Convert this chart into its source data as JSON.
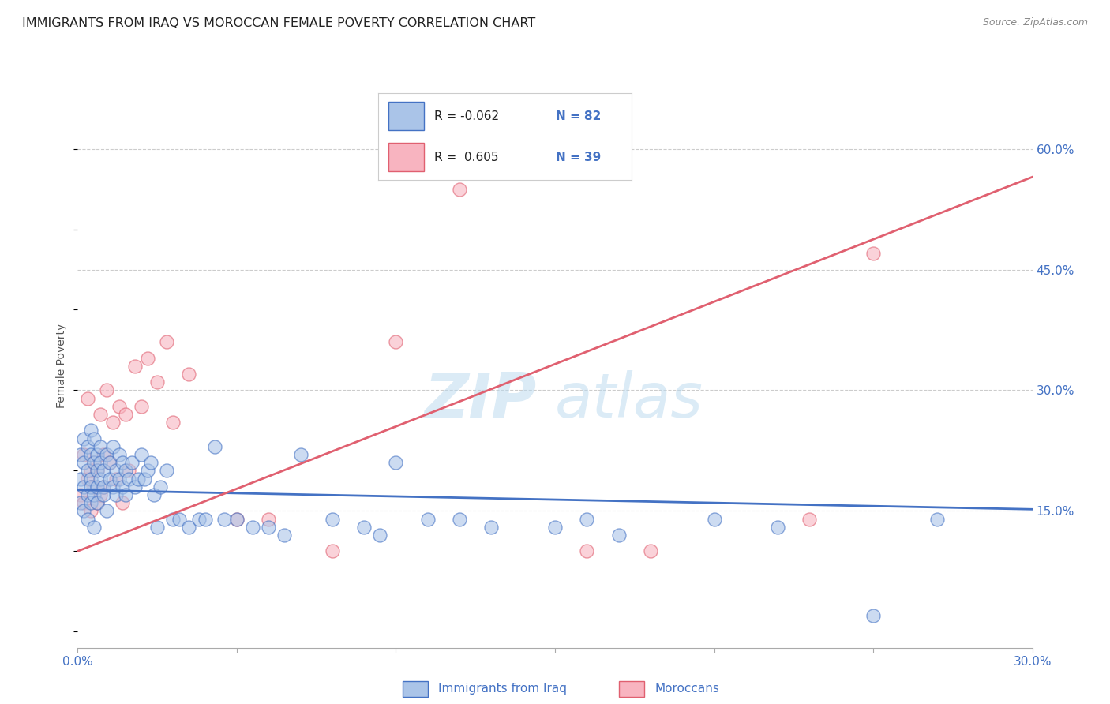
{
  "title": "IMMIGRANTS FROM IRAQ VS MOROCCAN FEMALE POVERTY CORRELATION CHART",
  "source": "Source: ZipAtlas.com",
  "xlabel_blue": "Immigrants from Iraq",
  "xlabel_pink": "Moroccans",
  "ylabel": "Female Poverty",
  "xlim": [
    0.0,
    0.3
  ],
  "ylim": [
    -0.02,
    0.68
  ],
  "right_yticks": [
    0.15,
    0.3,
    0.45,
    0.6
  ],
  "right_ytick_labels": [
    "15.0%",
    "30.0%",
    "45.0%",
    "60.0%"
  ],
  "xtick_vals": [
    0.0,
    0.05,
    0.1,
    0.15,
    0.2,
    0.25,
    0.3
  ],
  "blue_color": "#aac4e8",
  "pink_color": "#f8b4c0",
  "blue_line_color": "#4472C4",
  "pink_line_color": "#e06070",
  "blue_r": -0.062,
  "pink_r": 0.605,
  "blue_intercept": 0.176,
  "blue_slope": -0.08,
  "pink_intercept": 0.1,
  "pink_slope": 1.55,
  "blue_points_x": [
    0.001,
    0.001,
    0.001,
    0.002,
    0.002,
    0.002,
    0.002,
    0.003,
    0.003,
    0.003,
    0.003,
    0.004,
    0.004,
    0.004,
    0.004,
    0.004,
    0.005,
    0.005,
    0.005,
    0.005,
    0.006,
    0.006,
    0.006,
    0.006,
    0.007,
    0.007,
    0.007,
    0.008,
    0.008,
    0.008,
    0.009,
    0.009,
    0.01,
    0.01,
    0.011,
    0.011,
    0.012,
    0.012,
    0.013,
    0.013,
    0.014,
    0.014,
    0.015,
    0.015,
    0.016,
    0.017,
    0.018,
    0.019,
    0.02,
    0.021,
    0.022,
    0.023,
    0.024,
    0.025,
    0.026,
    0.028,
    0.03,
    0.032,
    0.035,
    0.038,
    0.04,
    0.043,
    0.046,
    0.05,
    0.055,
    0.06,
    0.065,
    0.07,
    0.08,
    0.09,
    0.095,
    0.1,
    0.11,
    0.12,
    0.13,
    0.15,
    0.16,
    0.17,
    0.2,
    0.22,
    0.25,
    0.27
  ],
  "blue_points_y": [
    0.19,
    0.16,
    0.22,
    0.18,
    0.21,
    0.15,
    0.24,
    0.2,
    0.17,
    0.23,
    0.14,
    0.19,
    0.22,
    0.16,
    0.25,
    0.18,
    0.21,
    0.17,
    0.24,
    0.13,
    0.2,
    0.18,
    0.22,
    0.16,
    0.23,
    0.19,
    0.21,
    0.18,
    0.2,
    0.17,
    0.22,
    0.15,
    0.19,
    0.21,
    0.18,
    0.23,
    0.2,
    0.17,
    0.22,
    0.19,
    0.18,
    0.21,
    0.17,
    0.2,
    0.19,
    0.21,
    0.18,
    0.19,
    0.22,
    0.19,
    0.2,
    0.21,
    0.17,
    0.13,
    0.18,
    0.2,
    0.14,
    0.14,
    0.13,
    0.14,
    0.14,
    0.23,
    0.14,
    0.14,
    0.13,
    0.13,
    0.12,
    0.22,
    0.14,
    0.13,
    0.12,
    0.21,
    0.14,
    0.14,
    0.13,
    0.13,
    0.14,
    0.12,
    0.14,
    0.13,
    0.02,
    0.14
  ],
  "pink_points_x": [
    0.001,
    0.002,
    0.002,
    0.003,
    0.003,
    0.004,
    0.004,
    0.005,
    0.005,
    0.006,
    0.006,
    0.007,
    0.007,
    0.008,
    0.008,
    0.009,
    0.01,
    0.011,
    0.012,
    0.013,
    0.014,
    0.015,
    0.016,
    0.018,
    0.02,
    0.022,
    0.025,
    0.028,
    0.03,
    0.035,
    0.05,
    0.06,
    0.08,
    0.1,
    0.12,
    0.16,
    0.18,
    0.23,
    0.25
  ],
  "pink_points_y": [
    0.17,
    0.16,
    0.22,
    0.19,
    0.29,
    0.2,
    0.15,
    0.21,
    0.18,
    0.16,
    0.2,
    0.17,
    0.27,
    0.22,
    0.18,
    0.3,
    0.21,
    0.26,
    0.19,
    0.28,
    0.16,
    0.27,
    0.2,
    0.33,
    0.28,
    0.34,
    0.31,
    0.36,
    0.26,
    0.32,
    0.14,
    0.14,
    0.1,
    0.36,
    0.55,
    0.1,
    0.1,
    0.14,
    0.47
  ]
}
